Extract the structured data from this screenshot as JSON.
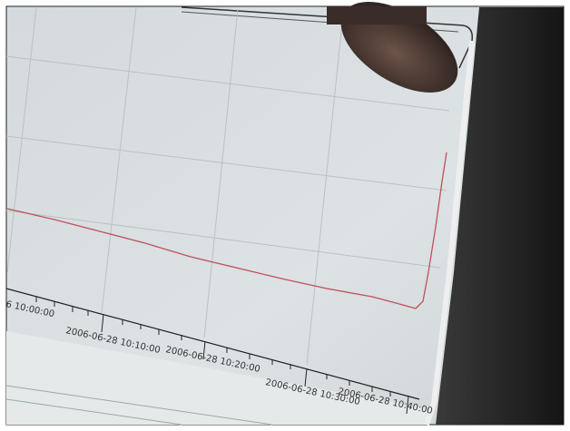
{
  "screen": {
    "axis_labels": [
      "6 10:00:00",
      "2006-06-28 10:10:00",
      "2006-06-28 10:20:00",
      "2006-06-28 10:30:00",
      "2006-06-28 10:40:00"
    ]
  }
}
